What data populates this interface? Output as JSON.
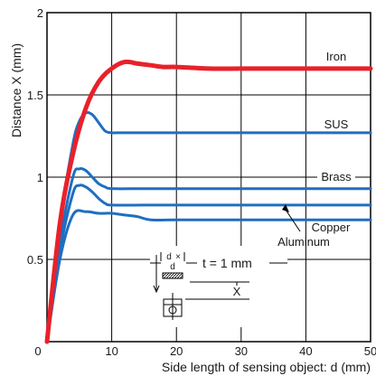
{
  "chart_data": {
    "type": "line",
    "title": "",
    "xlabel": "Side length of sensing object: d (mm)",
    "ylabel": "Distance X (mm)",
    "xlim": [
      0,
      50
    ],
    "ylim": [
      0,
      2
    ],
    "x_ticks": [
      "0",
      "10",
      "20",
      "30",
      "40",
      "50"
    ],
    "y_ticks": [
      "0.5",
      "1",
      "1.5",
      "2"
    ],
    "grid": true,
    "colors": {
      "iron": "#e8212a",
      "others": "#1e6fc1"
    },
    "series": [
      {
        "name": "Iron",
        "x": [
          0,
          2,
          4,
          6,
          8,
          10,
          12,
          14,
          16,
          18,
          20,
          25,
          30,
          35,
          40,
          45,
          50
        ],
        "y": [
          0,
          0.72,
          1.14,
          1.42,
          1.58,
          1.66,
          1.7,
          1.69,
          1.68,
          1.67,
          1.67,
          1.66,
          1.66,
          1.66,
          1.66,
          1.66,
          1.66
        ]
      },
      {
        "name": "SUS",
        "x": [
          0,
          2,
          4,
          5,
          6,
          7,
          8,
          9,
          10,
          11,
          15,
          20,
          30,
          40,
          50
        ],
        "y": [
          0,
          0.72,
          1.2,
          1.34,
          1.39,
          1.38,
          1.33,
          1.28,
          1.27,
          1.27,
          1.27,
          1.27,
          1.27,
          1.27,
          1.27
        ]
      },
      {
        "name": "Brass",
        "x": [
          0,
          2,
          4,
          5,
          6,
          7,
          8,
          9,
          10,
          15,
          20,
          30,
          40,
          50
        ],
        "y": [
          0,
          0.6,
          1.0,
          1.05,
          1.04,
          1.0,
          0.96,
          0.94,
          0.93,
          0.93,
          0.93,
          0.93,
          0.93,
          0.93
        ]
      },
      {
        "name": "Copper",
        "x": [
          0,
          2,
          4,
          5,
          6,
          7,
          8,
          9,
          10,
          15,
          20,
          30,
          40,
          50
        ],
        "y": [
          0,
          0.55,
          0.9,
          0.95,
          0.94,
          0.91,
          0.87,
          0.84,
          0.83,
          0.83,
          0.83,
          0.83,
          0.83,
          0.83
        ]
      },
      {
        "name": "Aluminum",
        "x": [
          0,
          2,
          4,
          6,
          8,
          10,
          12,
          14,
          16,
          20,
          30,
          40,
          50
        ],
        "y": [
          0,
          0.5,
          0.77,
          0.79,
          0.78,
          0.78,
          0.77,
          0.76,
          0.74,
          0.74,
          0.74,
          0.74,
          0.74
        ]
      }
    ],
    "annotations": {
      "note": "t = 1 mm",
      "inset_labels": [
        "d",
        "×",
        "d",
        "X"
      ]
    }
  }
}
